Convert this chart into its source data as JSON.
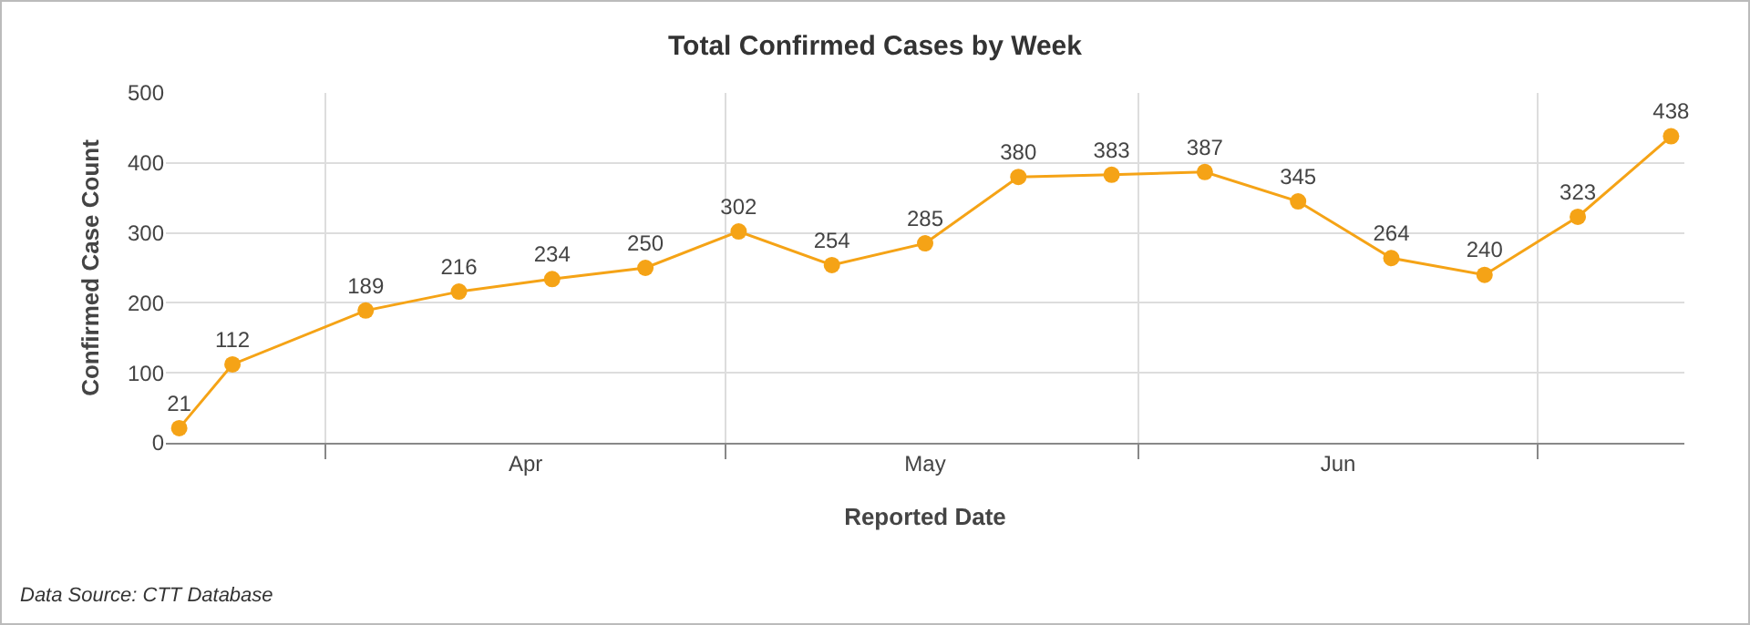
{
  "chart_data": {
    "type": "line",
    "title": "Total Confirmed Cases by Week",
    "xlabel": "Reported Date",
    "ylabel": "Confirmed Case Count",
    "x": [
      "--03-21",
      "--03-25",
      "--04-04",
      "--04-11",
      "--04-18",
      "--04-25",
      "--05-02",
      "--05-09",
      "--05-16",
      "--05-23",
      "--05-30",
      "--06-06",
      "--06-13",
      "--06-20",
      "--06-27",
      "--07-04",
      "--07-11"
    ],
    "series": [
      {
        "color": "#f5a316",
        "values": [
          21,
          112,
          189,
          216,
          234,
          250,
          302,
          254,
          285,
          380,
          383,
          387,
          345,
          264,
          240,
          323,
          438
        ]
      }
    ],
    "xlim": [
      "--03-20",
      "--07-12"
    ],
    "xticks": [
      {
        "value": "--04-01",
        "label": null
      },
      {
        "value": "--04-16",
        "label": "Apr"
      },
      {
        "value": "--05-01",
        "label": null
      },
      {
        "value": "--05-16",
        "label": "May"
      },
      {
        "value": "--06-01",
        "label": null
      },
      {
        "value": "--06-16",
        "label": "Jun"
      },
      {
        "value": "--07-01",
        "label": null
      }
    ],
    "ylim": [
      0,
      500
    ],
    "yticks": [
      0,
      100,
      200,
      300,
      400,
      500
    ],
    "grid": true,
    "marker": "circle",
    "line_style": "solid",
    "data_labels": true,
    "annotations": [
      "Data Source: CTT Database"
    ]
  }
}
